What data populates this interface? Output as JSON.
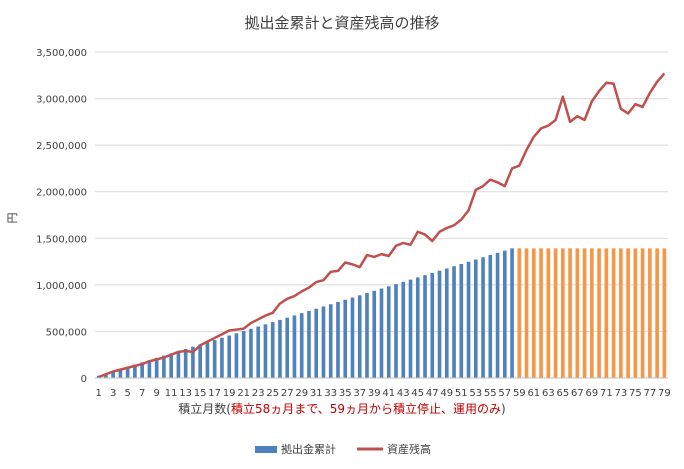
{
  "chart_data": {
    "type": "bar+line",
    "title": "拠出金累計と資産残高の推移",
    "ylabel": "円",
    "xlabel_prefix": "積立月数(",
    "xlabel_note": "積立58ヵ月まで、59ヵ月から積立停止、運用のみ",
    "xlabel_suffix": ")",
    "ylim": [
      0,
      3500000
    ],
    "yticks": [
      0,
      500000,
      1000000,
      1500000,
      2000000,
      2500000,
      3000000,
      3500000
    ],
    "ytick_labels": [
      "0",
      "500,000",
      "1,000,000",
      "1,500,000",
      "2,000,000",
      "2,500,000",
      "3,000,000",
      "3,500,000"
    ],
    "x": [
      1,
      2,
      3,
      4,
      5,
      6,
      7,
      8,
      9,
      10,
      11,
      12,
      13,
      14,
      15,
      16,
      17,
      18,
      19,
      20,
      21,
      22,
      23,
      24,
      25,
      26,
      27,
      28,
      29,
      30,
      31,
      32,
      33,
      34,
      35,
      36,
      37,
      38,
      39,
      40,
      41,
      42,
      43,
      44,
      45,
      46,
      47,
      48,
      49,
      50,
      51,
      52,
      53,
      54,
      55,
      56,
      57,
      58,
      59,
      60,
      61,
      62,
      63,
      64,
      65,
      66,
      67,
      68,
      69,
      70,
      71,
      72,
      73,
      74,
      75,
      76,
      77,
      78,
      79
    ],
    "xtick_labels_shown": [
      "1",
      "3",
      "5",
      "7",
      "9",
      "11",
      "13",
      "15",
      "17",
      "19",
      "21",
      "23",
      "25",
      "27",
      "29",
      "31",
      "33",
      "35",
      "37",
      "39",
      "41",
      "43",
      "45",
      "47",
      "49",
      "51",
      "53",
      "55",
      "57",
      "59",
      "61",
      "63",
      "65",
      "67",
      "69",
      "71",
      "73",
      "75",
      "77",
      "79"
    ],
    "grid": "horizontal",
    "legend_position": "bottom",
    "colors": {
      "contribution": "#4f81bd",
      "contribution_after": "#f79646",
      "assets": "#c0504d",
      "note": "#c00000"
    },
    "series": [
      {
        "name": "拠出金累計",
        "kind": "bar",
        "values": [
          24000,
          48000,
          72000,
          96000,
          120000,
          144000,
          168000,
          192000,
          216000,
          240000,
          264000,
          288000,
          312000,
          336000,
          360000,
          384000,
          408000,
          432000,
          456000,
          480000,
          504000,
          528000,
          552000,
          576000,
          600000,
          624000,
          648000,
          672000,
          696000,
          720000,
          744000,
          768000,
          792000,
          816000,
          840000,
          864000,
          888000,
          912000,
          936000,
          960000,
          984000,
          1008000,
          1032000,
          1056000,
          1080000,
          1104000,
          1128000,
          1152000,
          1176000,
          1200000,
          1224000,
          1248000,
          1272000,
          1296000,
          1320000,
          1344000,
          1368000,
          1392000,
          1392000,
          1392000,
          1392000,
          1392000,
          1392000,
          1392000,
          1392000,
          1392000,
          1392000,
          1392000,
          1392000,
          1392000,
          1392000,
          1392000,
          1392000,
          1392000,
          1392000,
          1392000,
          1392000,
          1392000,
          1392000
        ]
      },
      {
        "name": "資産残高",
        "kind": "line",
        "values": [
          10000,
          40000,
          70000,
          90000,
          110000,
          130000,
          150000,
          180000,
          200000,
          220000,
          250000,
          280000,
          290000,
          280000,
          350000,
          390000,
          430000,
          470000,
          510000,
          520000,
          530000,
          590000,
          630000,
          670000,
          700000,
          800000,
          850000,
          880000,
          930000,
          970000,
          1030000,
          1050000,
          1140000,
          1150000,
          1240000,
          1220000,
          1190000,
          1320000,
          1300000,
          1330000,
          1310000,
          1420000,
          1450000,
          1430000,
          1570000,
          1540000,
          1470000,
          1570000,
          1610000,
          1640000,
          1700000,
          1800000,
          2020000,
          2060000,
          2130000,
          2100000,
          2060000,
          2250000,
          2280000,
          2450000,
          2590000,
          2680000,
          2710000,
          2770000,
          3020000,
          2750000,
          2810000,
          2770000,
          2970000,
          3080000,
          3170000,
          3160000,
          2890000,
          2840000,
          2940000,
          2910000,
          3060000,
          3180000,
          3270000
        ]
      }
    ]
  }
}
